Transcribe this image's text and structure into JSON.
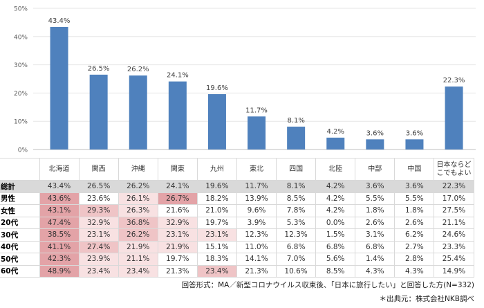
{
  "chart_data": {
    "type": "bar",
    "categories": [
      "北海道",
      "関西",
      "沖縄",
      "関東",
      "九州",
      "東北",
      "四国",
      "北陸",
      "中部",
      "中国",
      "日本ならどこでもよい"
    ],
    "values": [
      43.4,
      26.5,
      26.2,
      24.1,
      19.6,
      11.7,
      8.1,
      4.2,
      3.6,
      3.6,
      22.3
    ],
    "data_labels": [
      "43.4%",
      "26.5%",
      "26.2%",
      "24.1%",
      "19.6%",
      "11.7%",
      "8.1%",
      "4.2%",
      "3.6%",
      "3.6%",
      "22.3%"
    ],
    "yticks": [
      "0%",
      "10%",
      "20%",
      "30%",
      "40%",
      "50%"
    ],
    "ylim": [
      0,
      50
    ],
    "grid": true,
    "bar_color": "#4f81bd"
  },
  "table": {
    "headers": [
      "北海道",
      "関西",
      "沖縄",
      "関東",
      "九州",
      "東北",
      "四国",
      "北陸",
      "中部",
      "中国",
      "日本ならど\nこでもよい"
    ],
    "rows": [
      {
        "label": "総計",
        "values": [
          "43.4%",
          "26.5%",
          "26.2%",
          "24.1%",
          "19.6%",
          "11.7%",
          "8.1%",
          "4.2%",
          "3.6%",
          "3.6%",
          "22.3%"
        ],
        "shade": [
          0,
          0,
          0,
          0,
          0,
          0,
          0,
          0,
          0,
          0,
          0
        ]
      },
      {
        "label": "男性",
        "values": [
          "43.6%",
          "23.6%",
          "26.1%",
          "26.7%",
          "18.2%",
          "13.9%",
          "8.5%",
          "4.2%",
          "5.5%",
          "5.5%",
          "17.0%"
        ],
        "shade": [
          3,
          0,
          1,
          3,
          0,
          0,
          0,
          0,
          0,
          0,
          0
        ]
      },
      {
        "label": "女性",
        "values": [
          "43.1%",
          "29.3%",
          "26.3%",
          "21.6%",
          "21.0%",
          "9.6%",
          "7.8%",
          "4.2%",
          "1.8%",
          "1.8%",
          "27.5%"
        ],
        "shade": [
          3,
          2,
          1,
          0,
          0,
          0,
          0,
          0,
          0,
          0,
          0
        ]
      },
      {
        "label": "20代",
        "values": [
          "47.4%",
          "32.9%",
          "36.8%",
          "32.9%",
          "19.7%",
          "3.9%",
          "5.3%",
          "0.0%",
          "2.6%",
          "2.6%",
          "21.1%"
        ],
        "shade": [
          3,
          1,
          2,
          1,
          0,
          0,
          0,
          0,
          0,
          0,
          0
        ]
      },
      {
        "label": "30代",
        "values": [
          "38.5%",
          "23.1%",
          "26.2%",
          "23.1%",
          "23.1%",
          "12.3%",
          "12.3%",
          "1.5%",
          "3.1%",
          "6.2%",
          "24.6%"
        ],
        "shade": [
          3,
          1,
          2,
          1,
          1,
          0,
          0,
          0,
          0,
          0,
          0
        ]
      },
      {
        "label": "40代",
        "values": [
          "41.1%",
          "27.4%",
          "21.9%",
          "21.9%",
          "15.1%",
          "11.0%",
          "6.8%",
          "6.8%",
          "6.8%",
          "2.7%",
          "23.3%"
        ],
        "shade": [
          3,
          2,
          1,
          1,
          0,
          0,
          0,
          0,
          0,
          0,
          0
        ]
      },
      {
        "label": "50代",
        "values": [
          "42.3%",
          "23.9%",
          "21.1%",
          "19.7%",
          "18.3%",
          "14.1%",
          "7.0%",
          "5.6%",
          "1.4%",
          "2.8%",
          "25.4%"
        ],
        "shade": [
          3,
          1,
          1,
          0,
          0,
          0,
          0,
          0,
          0,
          0,
          0
        ]
      },
      {
        "label": "60代",
        "values": [
          "48.9%",
          "23.4%",
          "23.4%",
          "21.3%",
          "23.4%",
          "21.3%",
          "10.6%",
          "8.5%",
          "4.3%",
          "4.3%",
          "14.9%"
        ],
        "shade": [
          3,
          1,
          1,
          0,
          2,
          0,
          0,
          0,
          0,
          0,
          0
        ]
      }
    ]
  },
  "notes": {
    "answer_format": "回答形式：MA／新型コロナウイルス収束後、「日本に旅行したい」と回答した方(N=332)",
    "source": "＊出典元：株式会社NKB調べ"
  }
}
